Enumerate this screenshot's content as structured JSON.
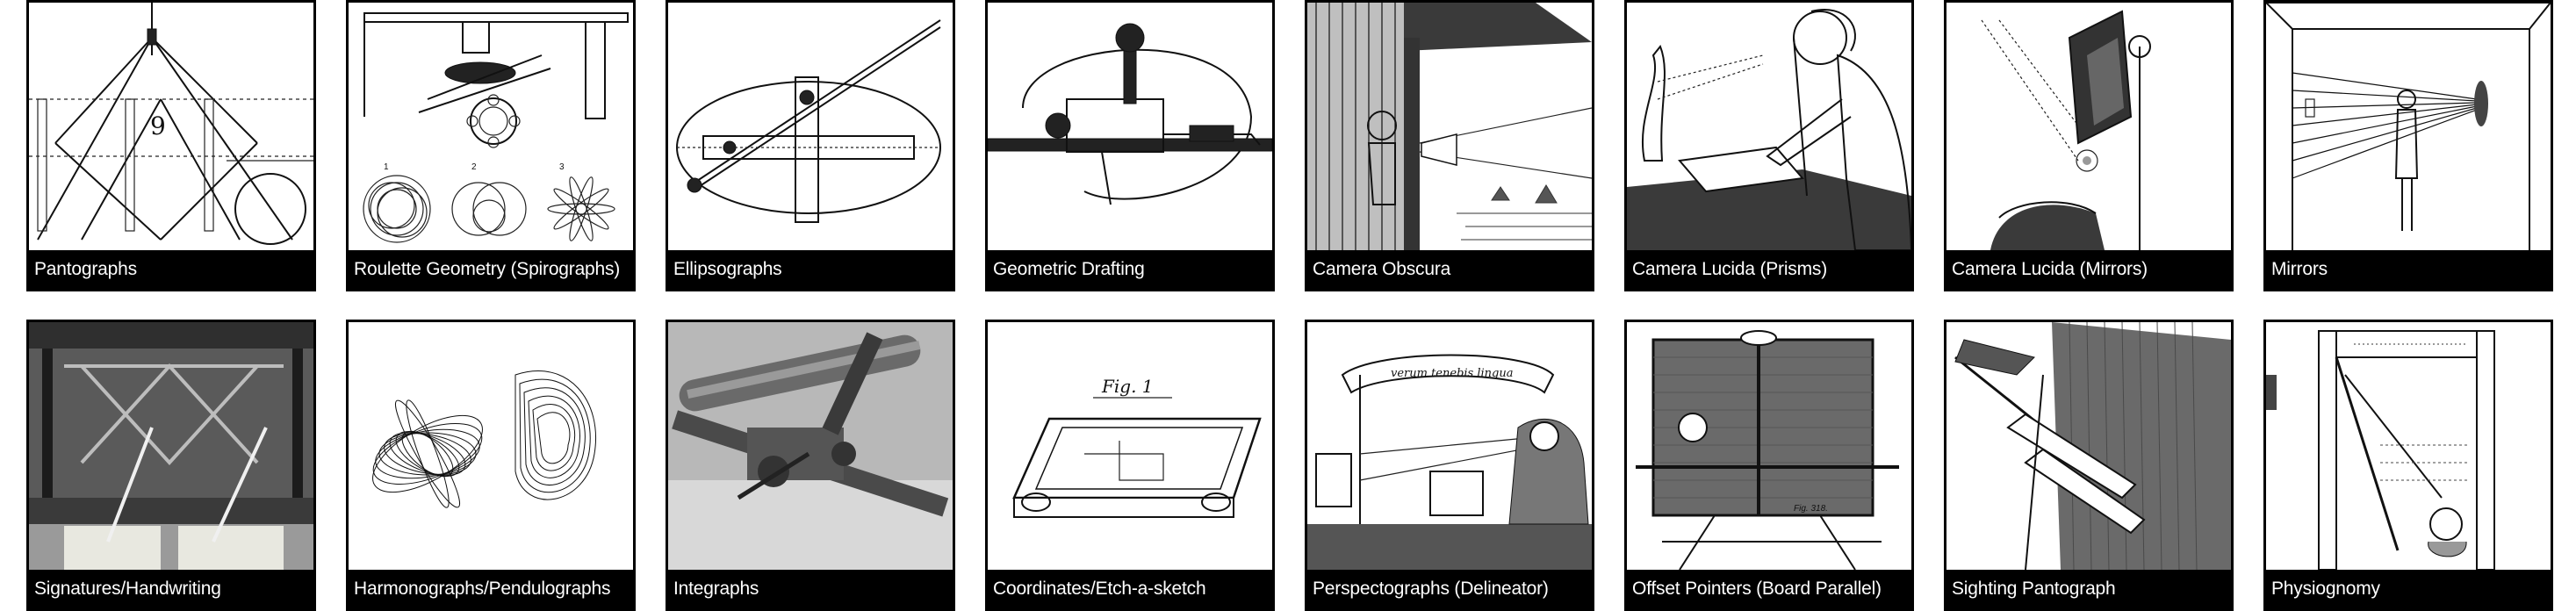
{
  "gallery": {
    "tiles": [
      {
        "label": "Pantographs",
        "icon": "pantograph-engraving-icon"
      },
      {
        "label": "Roulette Geometry (Spirographs)",
        "icon": "spirograph-engraving-icon"
      },
      {
        "label": "Ellipsographs",
        "icon": "ellipsograph-engraving-icon"
      },
      {
        "label": "Geometric Drafting",
        "icon": "drafting-instrument-engraving-icon"
      },
      {
        "label": "Camera Obscura",
        "icon": "camera-obscura-engraving-icon"
      },
      {
        "label": "Camera Lucida (Prisms)",
        "icon": "camera-lucida-prism-engraving-icon"
      },
      {
        "label": "Camera Lucida (Mirrors)",
        "icon": "camera-lucida-mirror-engraving-icon"
      },
      {
        "label": "Mirrors",
        "icon": "mirror-room-engraving-icon"
      },
      {
        "label": "Signatures/Handwriting",
        "icon": "signature-machine-photo-icon"
      },
      {
        "label": "Harmonographs/Pendulographs",
        "icon": "harmonograph-drawing-icon"
      },
      {
        "label": "Integraphs",
        "icon": "integraph-photo-icon"
      },
      {
        "label": "Coordinates/Etch-a-sketch",
        "icon": "etch-a-sketch-patent-icon"
      },
      {
        "label": "Perspectographs (Delineator)",
        "icon": "perspectograph-engraving-icon"
      },
      {
        "label": "Offset Pointers (Board Parallel)",
        "icon": "offset-pointer-engraving-icon"
      },
      {
        "label": "Sighting Pantograph",
        "icon": "sighting-pantograph-engraving-icon"
      },
      {
        "label": "Physiognomy",
        "icon": "physiognotrace-engraving-icon"
      }
    ],
    "engraving_texts": {
      "pantograph_number": "9",
      "spiro_numbers": [
        "1",
        "2",
        "3"
      ],
      "etch_fig": "Fig. 1",
      "delineator_banner": "verum tenebis lingua",
      "board_fig": "Fig. 318."
    }
  }
}
